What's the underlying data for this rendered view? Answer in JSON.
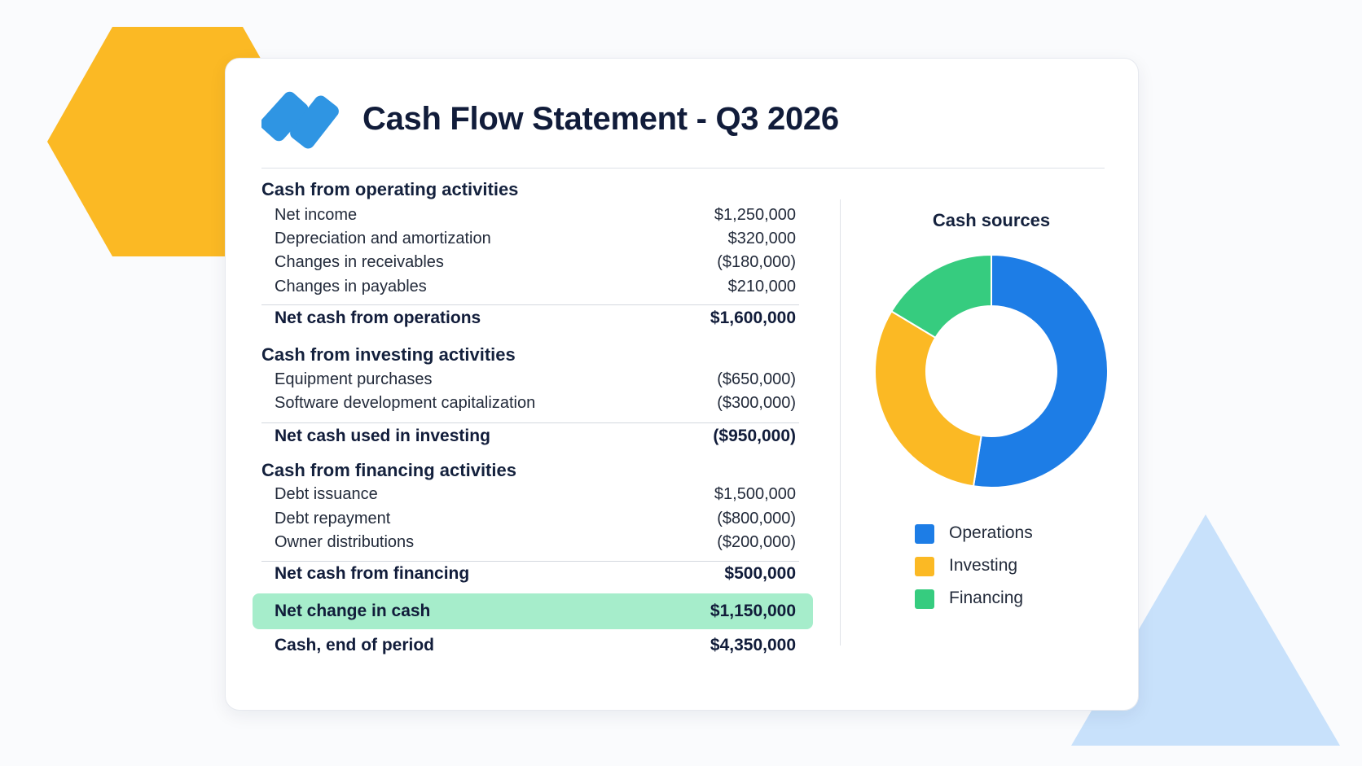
{
  "title": "Cash Flow Statement - Q3 2026",
  "colors": {
    "brand_blue": "#2f95e3",
    "operations": "#1d7de6",
    "investing": "#fbb924",
    "financing": "#36cc7f",
    "highlight": "#a6edcb",
    "deco_hexagon": "#fbb924",
    "deco_triangle": "#c8e1fb"
  },
  "icons": {
    "logo": "brand-logo-icon"
  },
  "operating": {
    "heading": "Cash from operating activities",
    "items": [
      {
        "label": "Net income",
        "amount": "$1,250,000"
      },
      {
        "label": "Depreciation and amortization",
        "amount": "$320,000"
      },
      {
        "label": "Changes in receivables",
        "amount": "($180,000)"
      },
      {
        "label": "Changes in payables",
        "amount": "$210,000"
      }
    ],
    "total": {
      "label": "Net cash from operations",
      "amount": "$1,600,000"
    }
  },
  "investing": {
    "heading": "Cash from investing activities",
    "items": [
      {
        "label": "Equipment purchases",
        "amount": "($650,000)"
      },
      {
        "label": "Software development capitalization",
        "amount": "($300,000)"
      }
    ],
    "total": {
      "label": "Net cash used in investing",
      "amount": "($950,000)"
    }
  },
  "financing": {
    "heading": "Cash from financing activities",
    "items": [
      {
        "label": "Debt issuance",
        "amount": "$1,500,000"
      },
      {
        "label": "Debt repayment",
        "amount": "($800,000)"
      },
      {
        "label": "Owner distributions",
        "amount": "($200,000)"
      }
    ],
    "total": {
      "label": "Net cash from financing",
      "amount": "$500,000"
    }
  },
  "summary": {
    "net_change": {
      "label": "Net change in cash",
      "amount": "$1,150,000"
    },
    "end_of_period": {
      "label": "Cash, end of period",
      "amount": "$4,350,000"
    }
  },
  "chart_data": {
    "type": "pie",
    "title": "Cash sources",
    "donut": true,
    "categories": [
      "Operations",
      "Investing",
      "Financing"
    ],
    "values": [
      1600000,
      950000,
      500000
    ],
    "colors": [
      "#1d7de6",
      "#fbb924",
      "#36cc7f"
    ],
    "legend": "bottom"
  }
}
